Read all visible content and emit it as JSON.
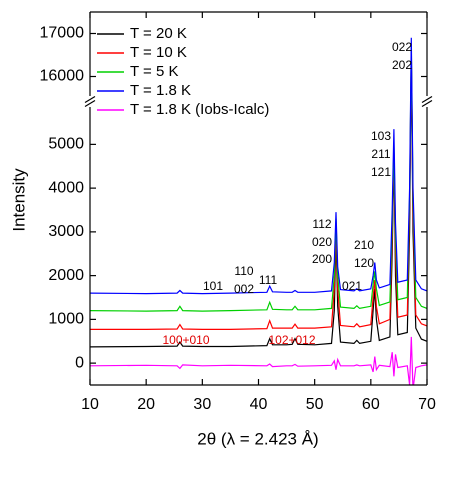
{
  "chart_data": {
    "type": "line",
    "xlabel": "2θ (λ = 2.423 Å)",
    "ylabel": "Intensity",
    "xlim": [
      10,
      70
    ],
    "xticks": [
      10,
      20,
      30,
      40,
      50,
      60,
      70
    ],
    "ylim": [
      -500,
      17500
    ],
    "y_break": [
      5900,
      15500
    ],
    "yticks": [
      0,
      1000,
      2000,
      3000,
      4000,
      5000,
      16000,
      17000
    ],
    "legend": "upper left",
    "x": [
      10,
      20,
      25.5,
      26,
      26.5,
      30,
      35,
      41.5,
      42,
      42.5,
      45,
      46,
      46.5,
      47,
      50,
      53,
      53.5,
      53.8,
      54.1,
      54.6,
      57,
      57.5,
      58,
      60,
      60.4,
      60.7,
      61,
      61.5,
      63.4,
      63.8,
      64.1,
      64.4,
      64.8,
      66.5,
      66.9,
      67.2,
      67.5,
      68,
      69,
      70
    ],
    "series": [
      {
        "name": "T = 20 K",
        "color": "#000000",
        "values": [
          370,
          380,
          390,
          480,
          390,
          380,
          380,
          400,
          560,
          420,
          420,
          430,
          560,
          430,
          420,
          450,
          1200,
          2900,
          1300,
          480,
          450,
          520,
          450,
          500,
          1200,
          1700,
          1000,
          520,
          600,
          2500,
          4800,
          2000,
          650,
          700,
          3000,
          16500,
          3000,
          800,
          550,
          500
        ]
      },
      {
        "name": "T = 10 K",
        "color": "#ff0000",
        "values": [
          770,
          770,
          780,
          880,
          780,
          770,
          770,
          790,
          970,
          800,
          800,
          800,
          890,
          800,
          800,
          830,
          1700,
          3100,
          1700,
          860,
          830,
          900,
          830,
          880,
          1500,
          1900,
          1300,
          900,
          1000,
          2900,
          4900,
          2500,
          1050,
          1100,
          3500,
          16600,
          3500,
          1100,
          900,
          850
        ]
      },
      {
        "name": "T = 5 K",
        "color": "#00d000",
        "values": [
          1200,
          1190,
          1200,
          1300,
          1200,
          1190,
          1200,
          1220,
          1390,
          1230,
          1220,
          1220,
          1300,
          1220,
          1220,
          1250,
          2000,
          3300,
          2000,
          1280,
          1250,
          1310,
          1250,
          1300,
          1800,
          2100,
          1700,
          1320,
          1400,
          3200,
          5000,
          2900,
          1450,
          1500,
          3800,
          16700,
          3800,
          1500,
          1300,
          1250
        ]
      },
      {
        "name": "T = 1.8 K",
        "color": "#0000ff",
        "values": [
          1600,
          1590,
          1600,
          1660,
          1600,
          1590,
          1600,
          1620,
          1760,
          1630,
          1620,
          1620,
          1660,
          1620,
          1620,
          1650,
          2300,
          3450,
          2200,
          1680,
          1650,
          1700,
          1650,
          1700,
          2000,
          2300,
          1900,
          1720,
          1800,
          3500,
          5350,
          3200,
          1850,
          1900,
          4000,
          16900,
          4000,
          1900,
          1700,
          1650
        ]
      },
      {
        "name": "T = 1.8 K (Iobs-Icalc)",
        "color": "#ff00ff",
        "values": [
          -60,
          -50,
          -60,
          -120,
          -40,
          -60,
          -50,
          -60,
          -20,
          -80,
          -60,
          -60,
          -30,
          -70,
          -60,
          -50,
          50,
          -150,
          80,
          -60,
          -60,
          -40,
          -60,
          -40,
          -200,
          150,
          -150,
          -50,
          -80,
          250,
          -300,
          200,
          -100,
          -60,
          -500,
          600,
          -600,
          -100,
          -60,
          -40
        ]
      }
    ],
    "annotations": [
      "101",
      "110",
      "002",
      "111",
      "112",
      "020",
      "200",
      "021",
      "210",
      "120",
      "103",
      "211",
      "121",
      "022",
      "202",
      "100+010",
      "102+012"
    ]
  }
}
